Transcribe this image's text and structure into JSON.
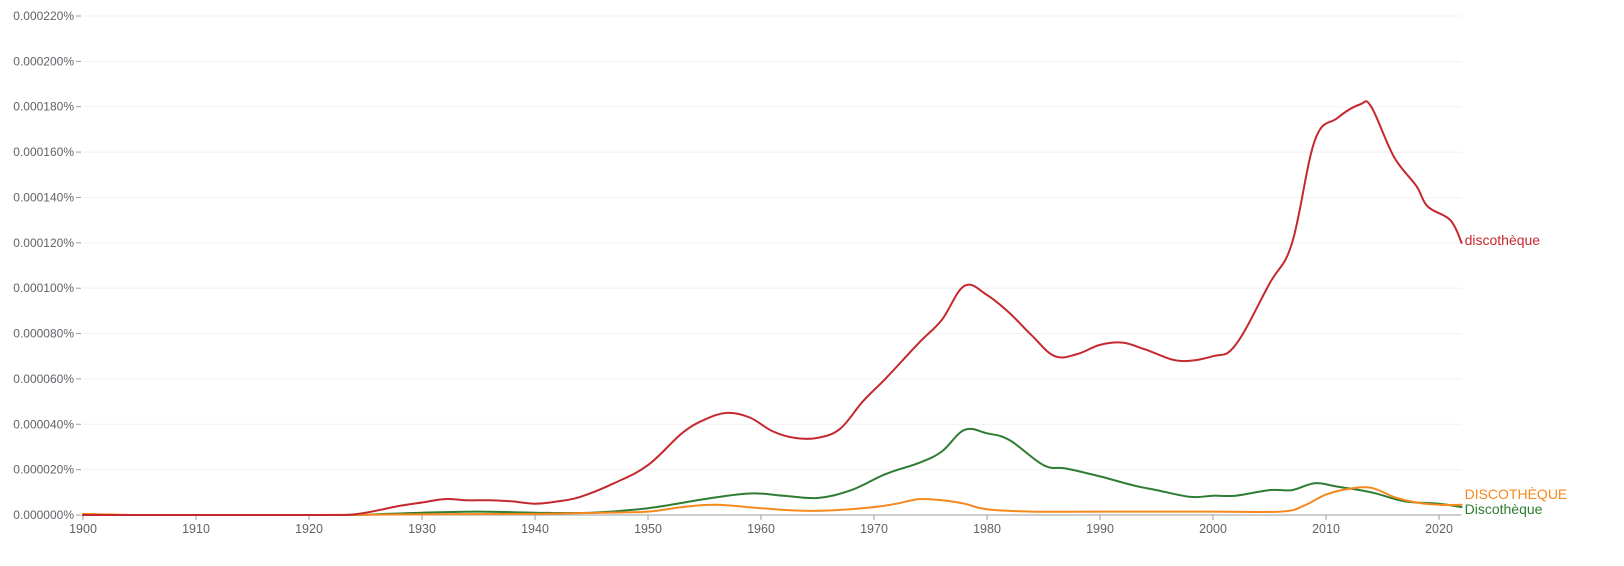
{
  "chart_data": {
    "type": "line",
    "title": "",
    "xlabel": "",
    "ylabel": "",
    "xlim": [
      1900,
      2022
    ],
    "ylim": [
      0,
      0.00022
    ],
    "grid": true,
    "legend_position": "inline-right",
    "y_unit": "%",
    "y_ticks": [
      "0.000000%",
      "0.000020%",
      "0.000040%",
      "0.000060%",
      "0.000080%",
      "0.000100%",
      "0.000120%",
      "0.000140%",
      "0.000160%",
      "0.000180%",
      "0.000200%",
      "0.000220%"
    ],
    "y_tick_values": [
      0,
      2e-05,
      4e-05,
      6e-05,
      8e-05,
      0.0001,
      0.00012,
      0.00014,
      0.00016,
      0.00018,
      0.0002,
      0.00022
    ],
    "x_ticks": [
      "1900",
      "1910",
      "1920",
      "1930",
      "1940",
      "1950",
      "1960",
      "1970",
      "1980",
      "1990",
      "2000",
      "2010",
      "2020"
    ],
    "x_tick_values": [
      1900,
      1910,
      1920,
      1930,
      1940,
      1950,
      1960,
      1970,
      1980,
      1990,
      2000,
      2010,
      2020
    ],
    "value_scale_note": "values below are in units of 1e-6 percent (e.g. 100 = 0.000100%)",
    "series": [
      {
        "name": "discothèque",
        "color": "#c5282f",
        "x": [
          1900,
          1910,
          1920,
          1923,
          1925,
          1928,
          1930,
          1932,
          1934,
          1936,
          1938,
          1940,
          1942,
          1944,
          1947,
          1950,
          1953,
          1955,
          1957,
          1959,
          1961,
          1963,
          1965,
          1967,
          1969,
          1971,
          1974,
          1976,
          1978,
          1980,
          1982,
          1984,
          1986,
          1988,
          1990,
          1992,
          1994,
          1997,
          2000,
          2002,
          2005,
          2007,
          2009,
          2011,
          2013,
          2014,
          2016,
          2018,
          2019,
          2021,
          2022
        ],
        "values": [
          0,
          0,
          0,
          0,
          1,
          4,
          5.5,
          7,
          6.5,
          6.5,
          6,
          5,
          6,
          8,
          14,
          22,
          36,
          42,
          45,
          43,
          37,
          34,
          34,
          38,
          50,
          60,
          76,
          86,
          101,
          97,
          89,
          79,
          70,
          71,
          75,
          76,
          73,
          68,
          70,
          75,
          102,
          120,
          165,
          175,
          181,
          180,
          158,
          145,
          136,
          130,
          120
        ]
      },
      {
        "name": "DISCOTHÈQUE",
        "color": "#f5891f",
        "x": [
          1900,
          1905,
          1910,
          1920,
          1930,
          1940,
          1946,
          1950,
          1953,
          1956,
          1960,
          1963,
          1966,
          1970,
          1972,
          1974,
          1976,
          1978,
          1980,
          1984,
          1990,
          2000,
          2006,
          2008,
          2010,
          2012,
          2014,
          2016,
          2018,
          2020,
          2022
        ],
        "values": [
          0.5,
          0,
          0,
          0,
          0.3,
          0.5,
          1,
          1.5,
          3.5,
          4.5,
          3,
          2,
          2,
          3.5,
          5,
          7,
          6.5,
          5,
          2.5,
          1.5,
          1.5,
          1.5,
          1.5,
          4,
          9,
          11.5,
          12,
          8,
          5.5,
          4.5,
          4.5
        ]
      },
      {
        "name": "Discothèque",
        "color": "#2e7d32",
        "x": [
          1900,
          1910,
          1920,
          1924,
          1930,
          1935,
          1940,
          1945,
          1950,
          1955,
          1959,
          1962,
          1965,
          1968,
          1971,
          1974,
          1976,
          1978,
          1980,
          1982,
          1985,
          1987,
          1990,
          1993,
          1995,
          1998,
          2000,
          2002,
          2005,
          2007,
          2009,
          2011,
          2014,
          2017,
          2020,
          2022
        ],
        "values": [
          0,
          0,
          0,
          0,
          1,
          1.5,
          1,
          1,
          3,
          7,
          9.5,
          8.5,
          7.5,
          11,
          18,
          23,
          28,
          37.5,
          36,
          33,
          22,
          20.5,
          17,
          13,
          11,
          8,
          8.5,
          8.5,
          11,
          11,
          14,
          12.5,
          10,
          6,
          5,
          3.5
        ]
      }
    ]
  },
  "legend": {
    "labels": [
      "discothèque",
      "DISCOTHÈQUE",
      "Discothèque"
    ]
  }
}
